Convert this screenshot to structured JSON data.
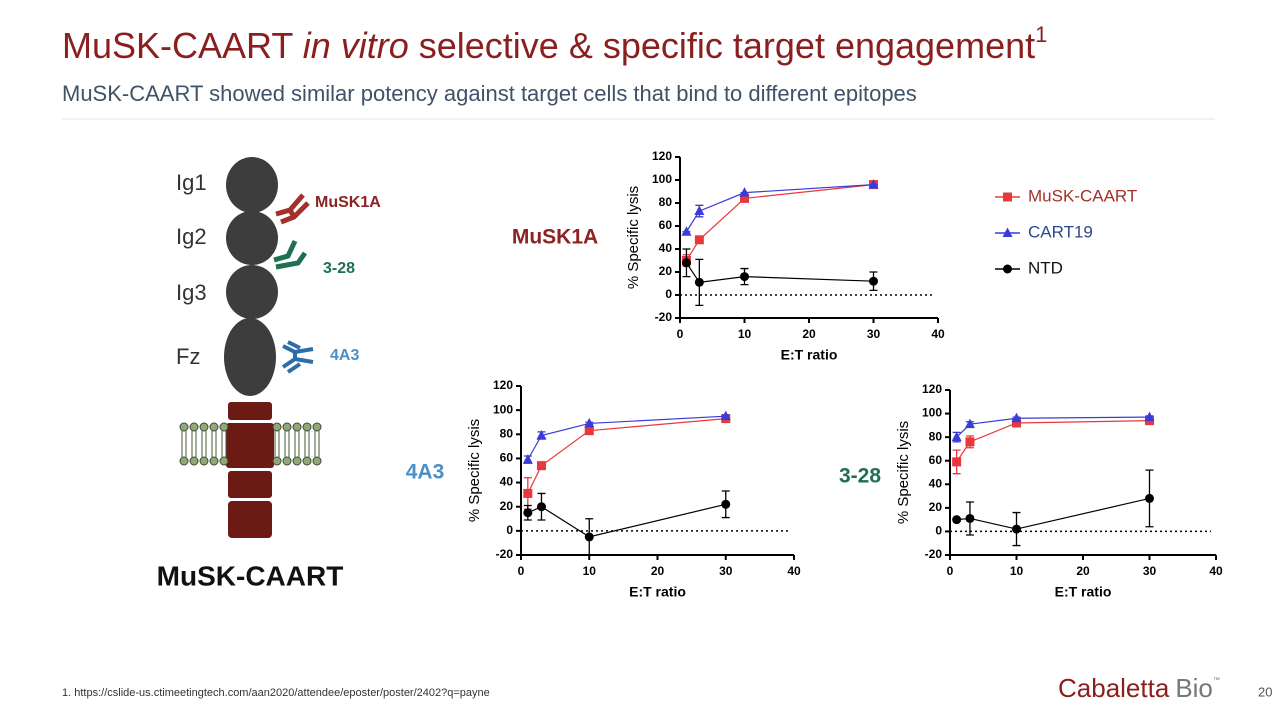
{
  "header": {
    "title": {
      "before": "MuSK-CAART ",
      "italic": "in vitro",
      "after": " selective & specific target engagement",
      "sup": "1"
    },
    "subtitle": "MuSK-CAART showed similar potency against target cells that bind to different epitopes"
  },
  "diagram": {
    "domains": [
      "Ig1",
      "Ig2",
      "Ig3",
      "Fz"
    ],
    "antibodies": [
      "MuSK1A",
      "3-28",
      "4A3"
    ],
    "construct": "MuSK-CAART"
  },
  "footnote": "1. https://cslide-us.ctimeetingtech.com/aan2020/attendee/eposter/poster/2402?q=payne",
  "logo": {
    "name": "Cabaletta",
    "suffix": "Bio",
    "mark": "™"
  },
  "page_number": "20",
  "chart_data": [
    {
      "type": "line",
      "title": "MuSK1A",
      "title_color": "#8b2323",
      "x_label": "E:T ratio",
      "y_label": "% Specific lysis",
      "x": [
        1,
        3,
        10,
        30
      ],
      "xlim": [
        0,
        40
      ],
      "xticks": [
        0,
        10,
        20,
        30,
        40
      ],
      "ylim": [
        -20,
        120
      ],
      "yticks": [
        -20,
        0,
        20,
        40,
        60,
        80,
        100,
        120
      ],
      "zero_line": true,
      "legend": "right",
      "series": [
        {
          "name": "MuSK-CAART",
          "color": "#e8383d",
          "marker": "square",
          "values": [
            30,
            48,
            84,
            96
          ],
          "errors": [
            5,
            2,
            2,
            2
          ]
        },
        {
          "name": "CART19",
          "color": "#3b3bd6",
          "marker": "triangle",
          "values": [
            55,
            73,
            89,
            96
          ],
          "errors": [
            0,
            5,
            0,
            0
          ]
        },
        {
          "name": "NTD",
          "color": "#000000",
          "marker": "circle",
          "values": [
            28,
            11,
            16,
            12
          ],
          "errors": [
            12,
            20,
            7,
            8
          ]
        }
      ]
    },
    {
      "type": "line",
      "title": "4A3",
      "title_color": "#4a90c8",
      "x_label": "E:T ratio",
      "y_label": "% Specific lysis",
      "x": [
        1,
        3,
        10,
        30
      ],
      "xlim": [
        0,
        40
      ],
      "xticks": [
        0,
        10,
        20,
        30,
        40
      ],
      "ylim": [
        -20,
        120
      ],
      "yticks": [
        -20,
        0,
        20,
        40,
        60,
        80,
        100,
        120
      ],
      "zero_line": true,
      "series": [
        {
          "color": "#e8383d",
          "marker": "square",
          "values": [
            31,
            54,
            83,
            93
          ],
          "errors": [
            13,
            3,
            2,
            1
          ]
        },
        {
          "color": "#3b3bd6",
          "marker": "triangle",
          "values": [
            59,
            79,
            89,
            95
          ],
          "errors": [
            3,
            3,
            1,
            1
          ]
        },
        {
          "color": "#000000",
          "marker": "circle",
          "values": [
            15,
            20,
            -5,
            22
          ],
          "errors": [
            6,
            11,
            15,
            11
          ]
        }
      ]
    },
    {
      "type": "line",
      "title": "3-28",
      "title_color": "#1e7050",
      "x_label": "E:T ratio",
      "y_label": "% Specific lysis",
      "x": [
        1,
        3,
        10,
        30
      ],
      "xlim": [
        0,
        40
      ],
      "xticks": [
        0,
        10,
        20,
        30,
        40
      ],
      "ylim": [
        -20,
        120
      ],
      "yticks": [
        -20,
        0,
        20,
        40,
        60,
        80,
        100,
        120
      ],
      "zero_line": true,
      "series": [
        {
          "color": "#e8383d",
          "marker": "square",
          "values": [
            59,
            76,
            92,
            94
          ],
          "errors": [
            10,
            5,
            2,
            2
          ]
        },
        {
          "color": "#3b3bd6",
          "marker": "triangle",
          "values": [
            80,
            91,
            96,
            97
          ],
          "errors": [
            4,
            2,
            1,
            1
          ]
        },
        {
          "color": "#000000",
          "marker": "circle",
          "values": [
            10,
            11,
            2,
            28
          ],
          "errors": [
            0,
            14,
            14,
            24
          ]
        }
      ]
    }
  ]
}
